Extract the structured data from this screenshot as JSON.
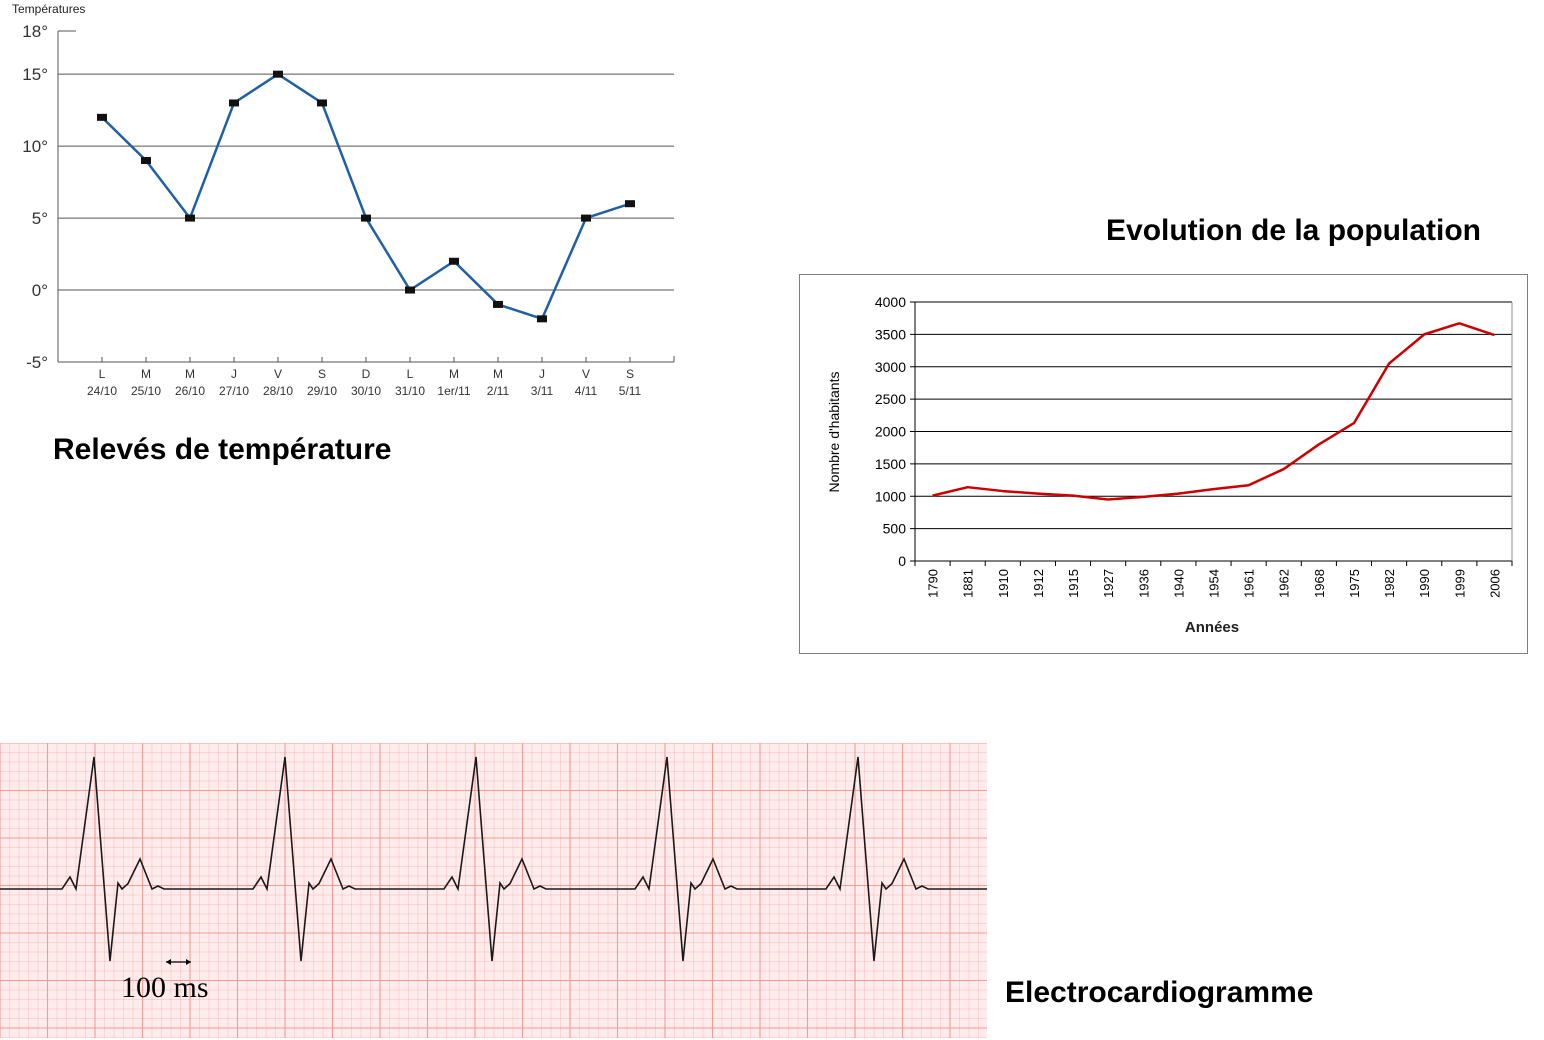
{
  "chart_data": [
    {
      "type": "line",
      "title": "Relevés de température",
      "ylabel": "Températures",
      "xlabel": "",
      "ylim": [
        -5,
        18
      ],
      "y_ticks": [
        "18°",
        "15°",
        "10°",
        "5°",
        "0°",
        "-5°"
      ],
      "grid": true,
      "categories_day": [
        "L",
        "M",
        "M",
        "J",
        "V",
        "S",
        "D",
        "L",
        "M",
        "M",
        "J",
        "V",
        "S"
      ],
      "categories_date": [
        "24/10",
        "25/10",
        "26/10",
        "27/10",
        "28/10",
        "29/10",
        "30/10",
        "31/10",
        "1er/11",
        "2/11",
        "3/11",
        "4/11",
        "5/11"
      ],
      "series": [
        {
          "values": [
            12,
            9,
            5,
            13,
            15,
            13,
            5,
            0,
            2,
            -1,
            -2,
            5,
            6
          ]
        }
      ],
      "color": "#1f5fa6"
    },
    {
      "type": "line",
      "title": "Evolution de la population",
      "ylabel": "Nombre d'habitants",
      "xlabel": "Années",
      "ylim": [
        0,
        4000
      ],
      "y_ticks": [
        "0",
        "500",
        "1000",
        "1500",
        "2000",
        "2500",
        "3000",
        "3500",
        "4000"
      ],
      "grid": true,
      "categories": [
        "1790",
        "1881",
        "1910",
        "1912",
        "1915",
        "1927",
        "1936",
        "1940",
        "1954",
        "1961",
        "1962",
        "1968",
        "1975",
        "1982",
        "1990",
        "1999",
        "2006"
      ],
      "series": [
        {
          "values": [
            1010,
            1140,
            1080,
            1040,
            1010,
            950,
            990,
            1040,
            1110,
            1170,
            1420,
            1800,
            2130,
            3050,
            3500,
            3670,
            3490
          ]
        }
      ],
      "color": "#cc0000"
    },
    {
      "type": "line",
      "title": "Electrocardiogramme",
      "scale_label": "100 ms",
      "grid": true,
      "beats": 5,
      "beat_shape": [
        [
          0,
          0
        ],
        [
          8,
          2
        ],
        [
          14,
          0
        ],
        [
          32,
          22
        ],
        [
          48,
          -12
        ],
        [
          56,
          1
        ],
        [
          60,
          0
        ],
        [
          66,
          0.9
        ],
        [
          78,
          5
        ],
        [
          90,
          0
        ],
        [
          96,
          0.5
        ],
        [
          102,
          0
        ]
      ],
      "color": "#1a1a1a",
      "grid_color": "#f39b95"
    }
  ]
}
